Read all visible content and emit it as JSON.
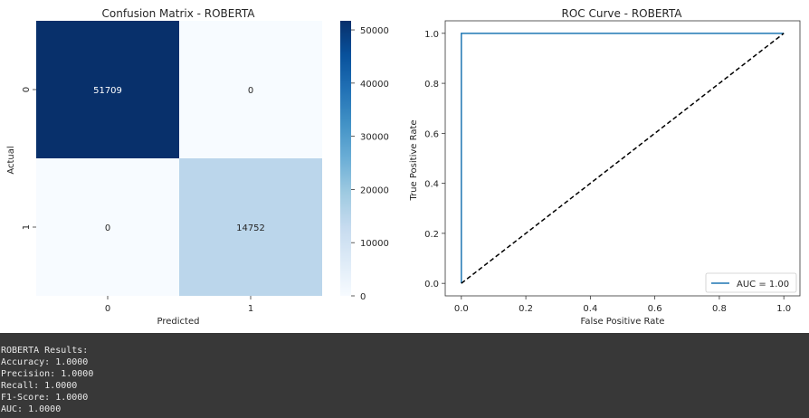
{
  "chart_data": [
    {
      "type": "heatmap",
      "title": "Confusion Matrix - ROBERTA",
      "xlabel": "Predicted",
      "ylabel": "Actual",
      "x_categories": [
        "0",
        "1"
      ],
      "y_categories": [
        "0",
        "1"
      ],
      "values": [
        [
          51709,
          0
        ],
        [
          0,
          14752
        ]
      ],
      "colormap": "Blues",
      "colorbar": {
        "range": [
          0,
          51709
        ],
        "ticks": [
          0,
          10000,
          20000,
          30000,
          40000,
          50000
        ],
        "tick_labels": [
          "0",
          "10000",
          "20000",
          "30000",
          "40000",
          "50000"
        ]
      },
      "colors": {
        "high": "#08306b",
        "low": "#f7fbff",
        "mid": "#bdd7ec",
        "text_dark_bg": "#ffffff",
        "text_light_bg": "#262626"
      }
    },
    {
      "type": "line",
      "title": "ROC Curve - ROBERTA",
      "xlabel": "False Positive Rate",
      "ylabel": "True Positive Rate",
      "xlim": [
        0.0,
        1.0
      ],
      "ylim": [
        0.0,
        1.0
      ],
      "x_ticks": [
        "0.0",
        "0.2",
        "0.4",
        "0.6",
        "0.8",
        "1.0"
      ],
      "y_ticks": [
        "0.0",
        "0.2",
        "0.4",
        "0.6",
        "0.8",
        "1.0"
      ],
      "series": [
        {
          "name": "AUC = 1.00",
          "x": [
            0.0,
            0.0,
            1.0
          ],
          "y": [
            0.0,
            1.0,
            1.0
          ],
          "color": "#1f77b4",
          "style": "solid"
        },
        {
          "x": [
            0.0,
            1.0
          ],
          "y": [
            0.0,
            1.0
          ],
          "color": "#000000",
          "style": "dashed"
        }
      ],
      "legend": "lower-right",
      "grid": false
    }
  ],
  "output": {
    "lines": [
      "ROBERTA Results:",
      "Accuracy: 1.0000",
      "Precision: 1.0000",
      "Recall: 1.0000",
      "F1-Score: 1.0000",
      "AUC: 1.0000"
    ]
  }
}
